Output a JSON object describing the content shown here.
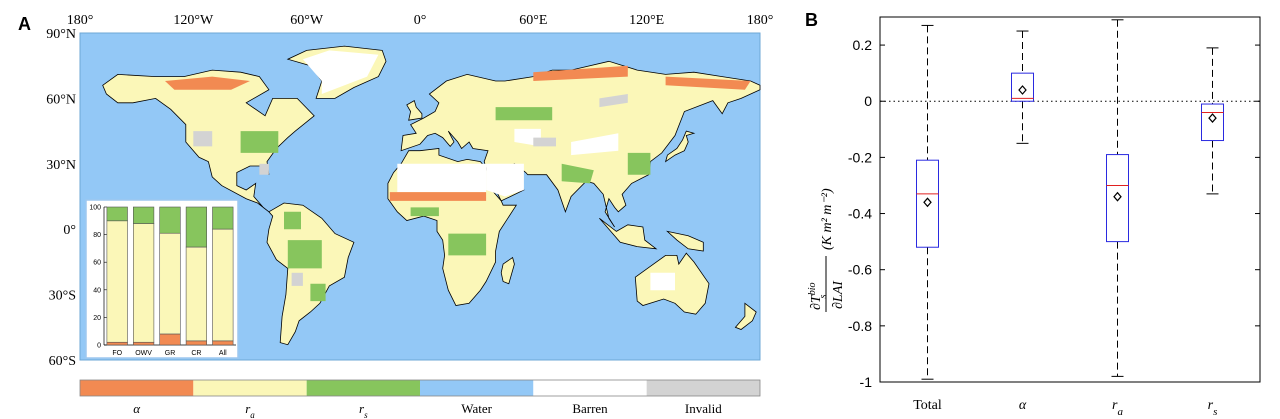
{
  "panel_a": {
    "letter": "A",
    "lon_labels": [
      {
        "value": -180,
        "label": "180°"
      },
      {
        "value": -120,
        "label": "120°W"
      },
      {
        "value": -60,
        "label": "60°W"
      },
      {
        "value": 0,
        "label": "0°"
      },
      {
        "value": 60,
        "label": "60°E"
      },
      {
        "value": 120,
        "label": "120°E"
      },
      {
        "value": 180,
        "label": "180°"
      }
    ],
    "lat_labels": [
      {
        "value": 90,
        "label": "90°N"
      },
      {
        "value": 60,
        "label": "60°N"
      },
      {
        "value": 30,
        "label": "30°N"
      },
      {
        "value": 0,
        "label": "0°"
      },
      {
        "value": -30,
        "label": "30°S"
      },
      {
        "value": -60,
        "label": "60°S"
      }
    ],
    "colors": {
      "alpha": "#f28a52",
      "ra": "#fbf7b8",
      "rs": "#87c55d",
      "water": "#93c8f6",
      "barren": "#ffffff",
      "invalid": "#d3d3d3",
      "coast": "#000000"
    },
    "legend": [
      {
        "key": "alpha",
        "label": "α",
        "sub": ""
      },
      {
        "key": "ra",
        "label": "r",
        "sub": "a"
      },
      {
        "key": "rs",
        "label": "r",
        "sub": "s"
      },
      {
        "key": "water",
        "label": "Water",
        "sub": ""
      },
      {
        "key": "barren",
        "label": "Barren",
        "sub": ""
      },
      {
        "key": "invalid",
        "label": "Invalid",
        "sub": ""
      }
    ]
  },
  "chart_data": [
    {
      "type": "bar",
      "stacked": true,
      "categories": [
        "FO",
        "OWV",
        "GR",
        "CR",
        "All"
      ],
      "series": [
        {
          "key": "alpha",
          "values": [
            2,
            2,
            8,
            3,
            3
          ]
        },
        {
          "key": "ra",
          "values": [
            88,
            86,
            73,
            68,
            81
          ]
        },
        {
          "key": "rs",
          "values": [
            10,
            12,
            19,
            29,
            16
          ]
        }
      ],
      "ylim": [
        0,
        100
      ],
      "yticks": [
        0,
        20,
        40,
        60,
        80,
        100
      ]
    },
    {
      "letter": "B",
      "type": "box",
      "categories": [
        "Total",
        "α",
        "r",
        "r"
      ],
      "category_subs": [
        "",
        "",
        "a",
        "s"
      ],
      "boxes": [
        {
          "whisker_low": -0.99,
          "q1": -0.52,
          "median": -0.33,
          "q3": -0.21,
          "whisker_high": 0.27,
          "mean": -0.36
        },
        {
          "whisker_low": -0.15,
          "q1": 0.0,
          "median": 0.01,
          "q3": 0.1,
          "whisker_high": 0.25,
          "mean": 0.04
        },
        {
          "whisker_low": -0.98,
          "q1": -0.5,
          "median": -0.3,
          "q3": -0.19,
          "whisker_high": 0.29,
          "mean": -0.34
        },
        {
          "whisker_low": -0.33,
          "q1": -0.14,
          "median": -0.04,
          "q3": -0.01,
          "whisker_high": 0.19,
          "mean": -0.06
        }
      ],
      "ylim": [
        -1.0,
        0.3
      ],
      "yticks": [
        {
          "value": 0.2,
          "label": "0.2"
        },
        {
          "value": 0,
          "label": "0"
        },
        {
          "value": -0.2,
          "label": "-0.2"
        },
        {
          "value": -0.4,
          "label": "-0.4"
        },
        {
          "value": -0.6,
          "label": "-0.6"
        },
        {
          "value": -0.8,
          "label": "-0.8"
        },
        {
          "value": -1,
          "label": "-1"
        }
      ],
      "zero_line": true,
      "ylabel_top": "∂T",
      "ylabel_sup": "bio",
      "ylabel_sub": "s",
      "ylabel_units": "(K m² m⁻²)",
      "ylabel_bottom": "∂LAI",
      "colors": {
        "box": "#2a2ae0",
        "median": "#e02020",
        "whisker": "#000000",
        "mean": "#000000"
      }
    }
  ]
}
